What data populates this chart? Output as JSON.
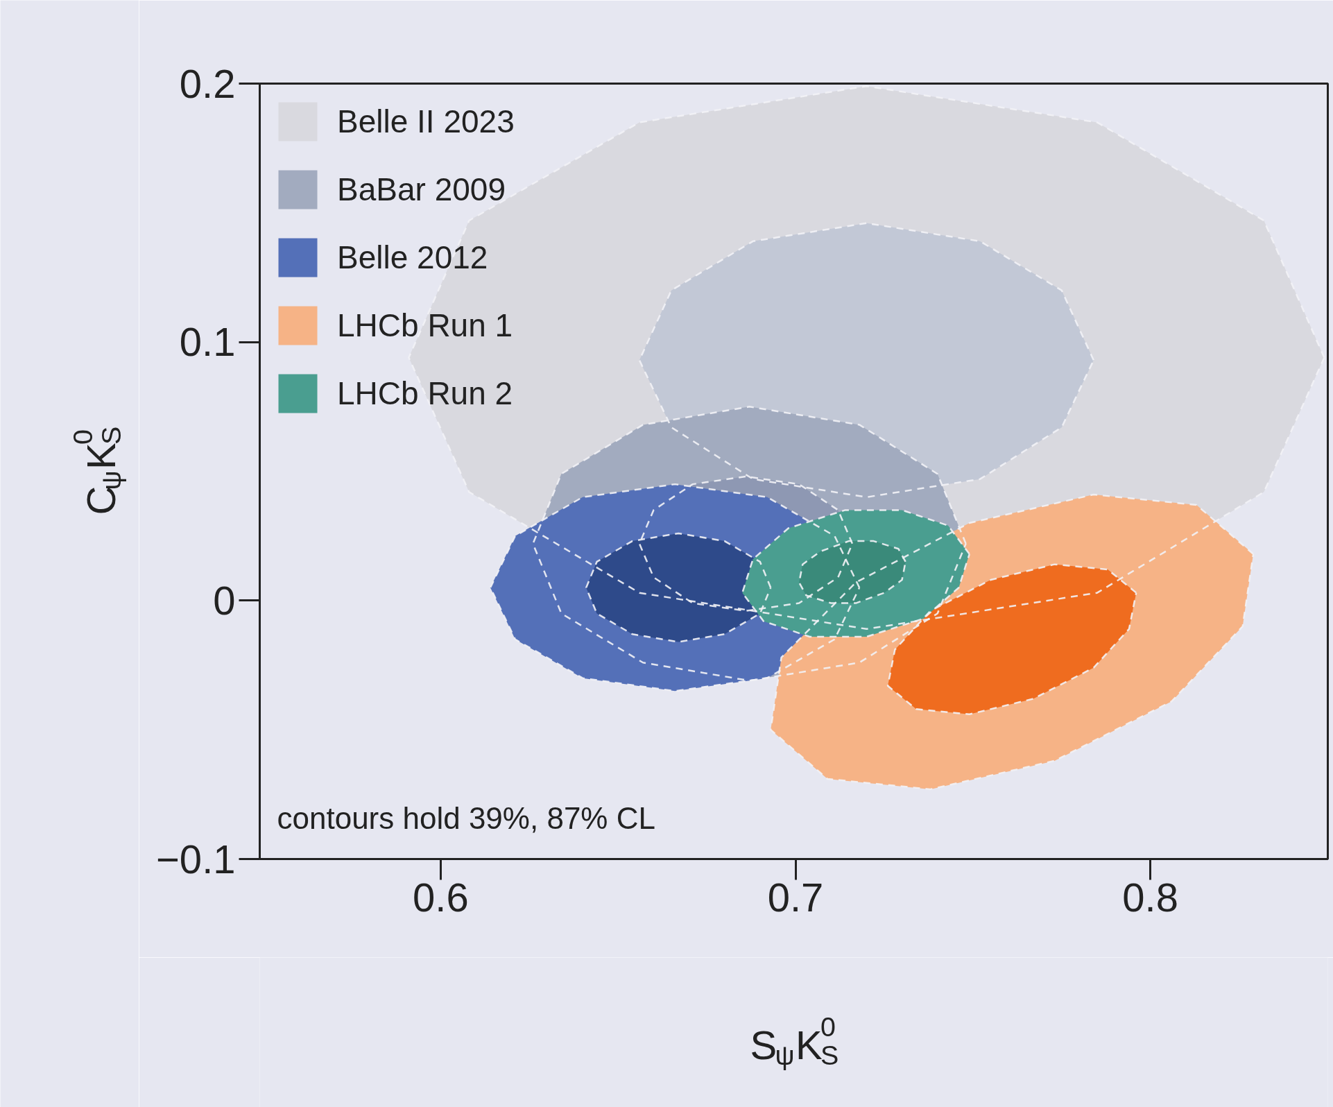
{
  "chart_data": {
    "type": "area",
    "xlabel": "S$_{ψ}$K$^{0}$$_{S}$",
    "ylabel": "C$_{ψ}$K$^{0}$$_{S}$",
    "xlim": [
      0.549,
      0.85
    ],
    "ylim": [
      -0.1,
      0.2
    ],
    "xticks": [
      0.6,
      0.7,
      0.8
    ],
    "yticks": [
      {
        "value": -0.1,
        "label": "−0.1"
      },
      0,
      0.1,
      0.2
    ],
    "grid": false,
    "legend": "top left",
    "line_style": "dashed",
    "annotations": [
      "contours hold 39%, 87% CL"
    ],
    "series": [
      {
        "name": "Belle II 2023",
        "color": "#d9d9df",
        "x": [
          0.849,
          0.832,
          0.785,
          0.72,
          0.656,
          0.608,
          0.591,
          0.608,
          0.656,
          0.72,
          0.785,
          0.832
        ],
        "values": [
          0.094,
          0.147,
          0.185,
          0.199,
          0.185,
          0.147,
          0.094,
          0.042,
          0.003,
          -0.011,
          0.003,
          0.042
        ]
      },
      {
        "color": "#c2c8d6",
        "x": [
          0.784,
          0.775,
          0.752,
          0.72,
          0.688,
          0.665,
          0.656,
          0.665,
          0.688,
          0.72,
          0.752,
          0.775
        ],
        "values": [
          0.093,
          0.12,
          0.139,
          0.146,
          0.139,
          0.12,
          0.093,
          0.067,
          0.047,
          0.04,
          0.047,
          0.067
        ]
      },
      {
        "name": "BaBar 2009",
        "color": "#a2abbf",
        "x": [
          0.748,
          0.74,
          0.718,
          0.687,
          0.657,
          0.634,
          0.626,
          0.634,
          0.657,
          0.687,
          0.718,
          0.74
        ],
        "values": [
          0.022,
          0.049,
          0.068,
          0.075,
          0.068,
          0.049,
          0.022,
          -0.005,
          -0.024,
          -0.031,
          -0.024,
          -0.005
        ]
      },
      {
        "color": "#8e98b3",
        "x": [
          0.716,
          0.712,
          0.701,
          0.686,
          0.671,
          0.66,
          0.656,
          0.66,
          0.671,
          0.686,
          0.701,
          0.712
        ],
        "values": [
          0.022,
          0.035,
          0.045,
          0.048,
          0.045,
          0.035,
          0.022,
          0.009,
          -0.001,
          -0.004,
          -0.001,
          0.009
        ]
      },
      {
        "name": "Belle 2012",
        "color": "#5470b8",
        "x": [
          0.718,
          0.711,
          0.692,
          0.666,
          0.64,
          0.621,
          0.614,
          0.621,
          0.64,
          0.666,
          0.692,
          0.711
        ],
        "values": [
          0.005,
          0.025,
          0.04,
          0.045,
          0.04,
          0.025,
          0.005,
          -0.015,
          -0.03,
          -0.035,
          -0.03,
          -0.015
        ]
      },
      {
        "color": "#2e4a8a",
        "x": [
          0.693,
          0.69,
          0.68,
          0.667,
          0.654,
          0.644,
          0.641,
          0.644,
          0.654,
          0.667,
          0.68,
          0.69
        ],
        "values": [
          0.005,
          0.015,
          0.023,
          0.026,
          0.023,
          0.015,
          0.005,
          -0.005,
          -0.013,
          -0.016,
          -0.013,
          -0.005
        ]
      },
      {
        "name": "LHCb Run 1",
        "color": "#f6b386",
        "x": [
          0.829,
          0.813,
          0.784,
          0.749,
          0.717,
          0.696,
          0.693,
          0.709,
          0.738,
          0.773,
          0.806,
          0.826
        ],
        "values": [
          0.018,
          0.037,
          0.041,
          0.03,
          0.007,
          -0.022,
          -0.05,
          -0.069,
          -0.073,
          -0.062,
          -0.039,
          -0.01
        ]
      },
      {
        "color": "#ef6c1f",
        "x": [
          0.796,
          0.788,
          0.773,
          0.755,
          0.738,
          0.728,
          0.726,
          0.734,
          0.749,
          0.767,
          0.784,
          0.794
        ],
        "values": [
          0.003,
          0.012,
          0.014,
          0.008,
          -0.004,
          -0.019,
          -0.033,
          -0.042,
          -0.044,
          -0.038,
          -0.026,
          -0.011
        ]
      },
      {
        "name": "LHCb Run 2",
        "color": "#4a9e90",
        "x": [
          0.749,
          0.743,
          0.73,
          0.714,
          0.698,
          0.688,
          0.685,
          0.691,
          0.704,
          0.72,
          0.736,
          0.746
        ],
        "values": [
          0.018,
          0.029,
          0.035,
          0.035,
          0.028,
          0.016,
          0.003,
          -0.008,
          -0.014,
          -0.014,
          -0.007,
          0.005
        ]
      },
      {
        "color": "#3a8a7a",
        "x": [
          0.731,
          0.729,
          0.722,
          0.715,
          0.707,
          0.702,
          0.701,
          0.703,
          0.71,
          0.717,
          0.725,
          0.73
        ],
        "values": [
          0.015,
          0.02,
          0.023,
          0.023,
          0.019,
          0.014,
          0.007,
          0.002,
          -0.001,
          -0.001,
          0.003,
          0.008
        ]
      }
    ]
  }
}
